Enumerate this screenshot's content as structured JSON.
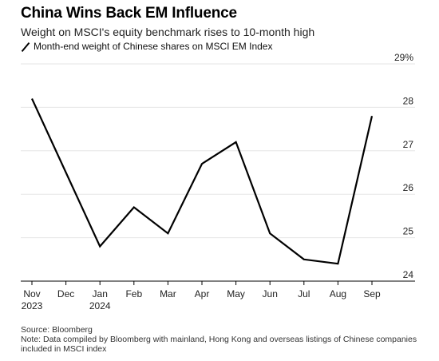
{
  "header": {
    "title": "China Wins Back EM Influence",
    "subtitle": "Weight on MSCI's equity benchmark rises to 10-month high",
    "legend_label": "Month-end weight of Chinese shares on MSCI EM Index"
  },
  "footer": {
    "source": "Source: Bloomberg",
    "note": "Note: Data compiled by Bloomberg with mainland, Hong Kong and overseas listings of Chinese companies included in MSCI index"
  },
  "colors": {
    "line": "#000000",
    "grid": "#e6e6e6",
    "axis": "#000000",
    "text": "#222222"
  },
  "chart_data": {
    "type": "line",
    "categories": [
      "Nov",
      "Dec",
      "Jan",
      "Feb",
      "Mar",
      "Apr",
      "May",
      "Jun",
      "Jul",
      "Aug",
      "Sep"
    ],
    "year_labels": [
      "2023",
      "",
      "2024",
      "",
      "",
      "",
      "",
      "",
      "",
      "",
      ""
    ],
    "series": [
      {
        "values": [
          28.2,
          26.5,
          24.8,
          25.7,
          25.1,
          26.7,
          27.2,
          25.1,
          24.5,
          24.4,
          27.8
        ]
      }
    ],
    "yticks": [
      "24",
      "25",
      "26",
      "27",
      "28",
      "29%"
    ],
    "ylim": [
      24,
      29
    ],
    "grid": true,
    "y_axis_position": "right"
  }
}
